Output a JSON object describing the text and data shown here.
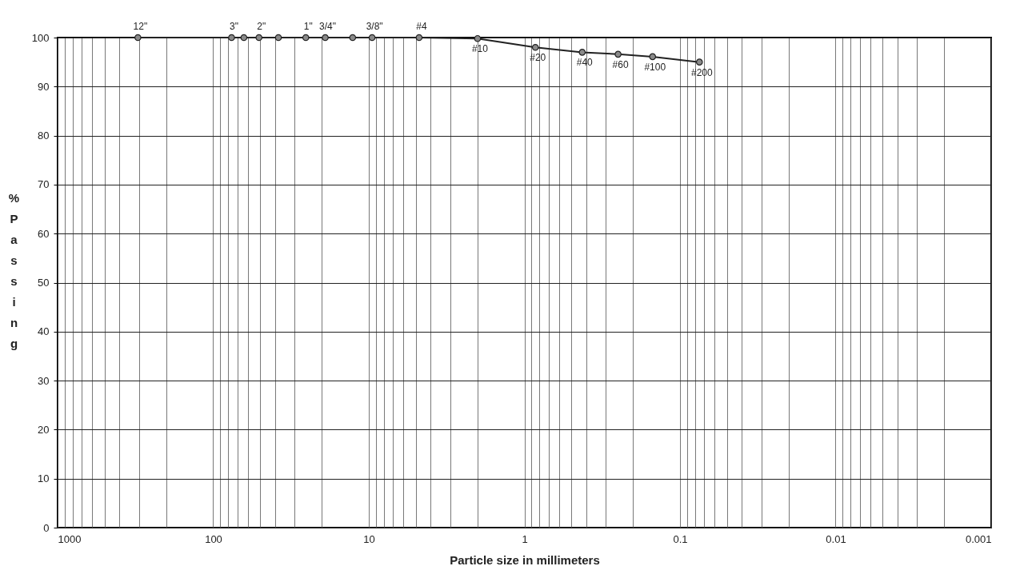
{
  "chart_data": {
    "type": "line",
    "xlabel": "Particle size in millimeters",
    "ylabel": "% Passing",
    "x": [
      304.8,
      76.2,
      63.5,
      50.8,
      38.1,
      25.4,
      19.05,
      12.7,
      9.525,
      4.75,
      2.0,
      0.85,
      0.425,
      0.25,
      0.15,
      0.075
    ],
    "series": [
      {
        "color": "#222222",
        "values": [
          100,
          100,
          100,
          100,
          100,
          100,
          100,
          100,
          100,
          100,
          99.8,
          98,
          97,
          96.6,
          96.1,
          95
        ]
      }
    ],
    "log": "x",
    "marker": "circle",
    "line_style": "solid",
    "grid": true,
    "xlim": [
      1000,
      0.001
    ],
    "xticks": [
      1000,
      {
        "value": 900,
        "label": null
      },
      {
        "value": 800,
        "label": null
      },
      {
        "value": 700,
        "label": null
      },
      {
        "value": 600,
        "label": null
      },
      {
        "value": 500,
        "label": null
      },
      {
        "value": 400,
        "label": null
      },
      {
        "value": 300,
        "label": null
      },
      {
        "value": 200,
        "label": null
      },
      100,
      {
        "value": 90,
        "label": null
      },
      {
        "value": 80,
        "label": null
      },
      {
        "value": 70,
        "label": null
      },
      {
        "value": 60,
        "label": null
      },
      {
        "value": 50,
        "label": null
      },
      {
        "value": 40,
        "label": null
      },
      {
        "value": 30,
        "label": null
      },
      {
        "value": 20,
        "label": null
      },
      10,
      {
        "value": 9,
        "label": null
      },
      {
        "value": 8,
        "label": null
      },
      {
        "value": 7,
        "label": null
      },
      {
        "value": 6,
        "label": null
      },
      {
        "value": 5,
        "label": null
      },
      {
        "value": 4,
        "label": null
      },
      {
        "value": 3,
        "label": null
      },
      {
        "value": 2,
        "label": null
      },
      1,
      {
        "value": 0.9,
        "label": null
      },
      {
        "value": 0.8,
        "label": null
      },
      {
        "value": 0.7,
        "label": null
      },
      {
        "value": 0.6,
        "label": null
      },
      {
        "value": 0.5,
        "label": null
      },
      {
        "value": 0.4,
        "label": null
      },
      {
        "value": 0.3,
        "label": null
      },
      {
        "value": 0.2,
        "label": null
      },
      0.1,
      {
        "value": 0.09,
        "label": null
      },
      {
        "value": 0.08,
        "label": null
      },
      {
        "value": 0.07,
        "label": null
      },
      {
        "value": 0.06,
        "label": null
      },
      {
        "value": 0.05,
        "label": null
      },
      {
        "value": 0.04,
        "label": null
      },
      {
        "value": 0.03,
        "label": null
      },
      {
        "value": 0.02,
        "label": null
      },
      0.01,
      {
        "value": 0.009,
        "label": null
      },
      {
        "value": 0.008,
        "label": null
      },
      {
        "value": 0.007,
        "label": null
      },
      {
        "value": 0.006,
        "label": null
      },
      {
        "value": 0.005,
        "label": null
      },
      {
        "value": 0.004,
        "label": null
      },
      {
        "value": 0.003,
        "label": null
      },
      {
        "value": 0.002,
        "label": null
      },
      0.001
    ],
    "ylim": [
      0,
      100
    ],
    "yticks": [
      0,
      10,
      20,
      30,
      40,
      50,
      60,
      70,
      80,
      90,
      100
    ],
    "annotations": [
      {
        "text": "12\"",
        "x": 304.8,
        "y": 100
      },
      {
        "text": "3\"",
        "x": 76.2,
        "y": 100
      },
      {
        "text": "2\"",
        "x": 50.8,
        "y": 100
      },
      {
        "text": "1\"",
        "x": 25.4,
        "y": 100
      },
      {
        "text": "3/4\"",
        "x": 19.05,
        "y": 100
      },
      {
        "text": "3/8\"",
        "x": 9.525,
        "y": 100
      },
      {
        "text": "#4",
        "x": 4.75,
        "y": 100
      },
      {
        "text": "#10",
        "x": 2.0,
        "y": 99.8
      },
      {
        "text": "#20",
        "x": 0.85,
        "y": 98
      },
      {
        "text": "#40",
        "x": 0.425,
        "y": 97
      },
      {
        "text": "#60",
        "x": 0.25,
        "y": 96.6
      },
      {
        "text": "#100",
        "x": 0.15,
        "y": 96.1
      },
      {
        "text": "#200",
        "x": 0.075,
        "y": 95
      }
    ]
  }
}
